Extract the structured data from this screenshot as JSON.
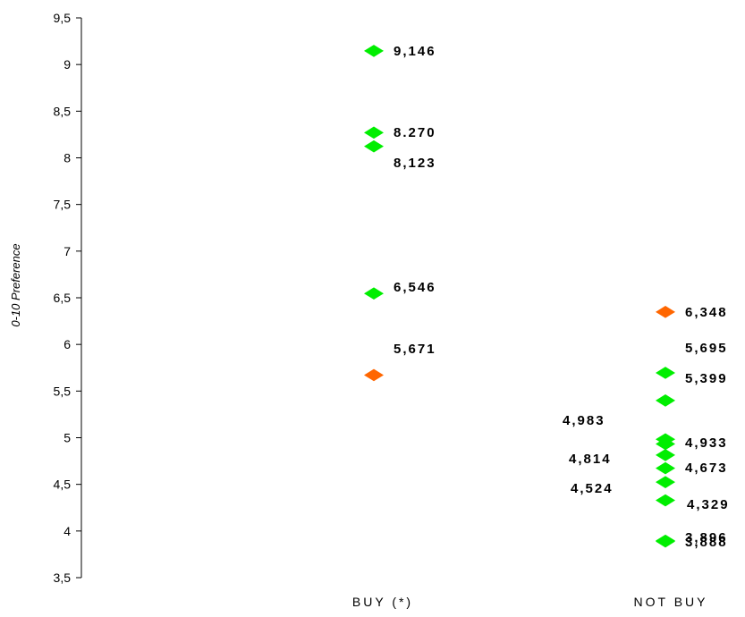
{
  "chart_data": {
    "type": "scatter",
    "ylabel": "0-10 Preference",
    "ylim": [
      3.5,
      9.5
    ],
    "yticks": [
      "3,5",
      "4",
      "4,5",
      "5",
      "5,5",
      "6",
      "6,5",
      "7",
      "7,5",
      "8",
      "8,5",
      "9",
      "9,5"
    ],
    "categories": [
      "BUY (*)",
      "NOT BUY"
    ],
    "grid": false,
    "colors": {
      "green": "#00ee00",
      "orange": "#ff6600"
    },
    "points": [
      {
        "category": "BUY (*)",
        "y": 9.146,
        "label": "9,146",
        "color": "green"
      },
      {
        "category": "BUY (*)",
        "y": 8.27,
        "label": "8.270",
        "color": "green"
      },
      {
        "category": "BUY (*)",
        "y": 8.123,
        "label": "8,123",
        "color": "green"
      },
      {
        "category": "BUY (*)",
        "y": 6.546,
        "label": "6,546",
        "color": "green"
      },
      {
        "category": "BUY (*)",
        "y": 5.671,
        "label": "5,671",
        "color": "orange"
      },
      {
        "category": "NOT BUY",
        "y": 6.348,
        "label": "6,348",
        "color": "orange"
      },
      {
        "category": "NOT BUY",
        "y": 5.695,
        "label": "5,695",
        "color": "green"
      },
      {
        "category": "NOT BUY",
        "y": 5.399,
        "label": "5,399",
        "color": "green"
      },
      {
        "category": "NOT BUY",
        "y": 4.983,
        "label": "4,983",
        "color": "green"
      },
      {
        "category": "NOT BUY",
        "y": 4.933,
        "label": "4,933",
        "color": "green"
      },
      {
        "category": "NOT BUY",
        "y": 4.814,
        "label": "4,814",
        "color": "green"
      },
      {
        "category": "NOT BUY",
        "y": 4.673,
        "label": "4,673",
        "color": "green"
      },
      {
        "category": "NOT BUY",
        "y": 4.524,
        "label": "4,524",
        "color": "green"
      },
      {
        "category": "NOT BUY",
        "y": 4.329,
        "label": "4,329",
        "color": "green"
      },
      {
        "category": "NOT BUY",
        "y": 3.896,
        "label": "3,896",
        "color": "green"
      },
      {
        "category": "NOT BUY",
        "y": 3.888,
        "label": "3,888",
        "color": "green"
      }
    ]
  }
}
